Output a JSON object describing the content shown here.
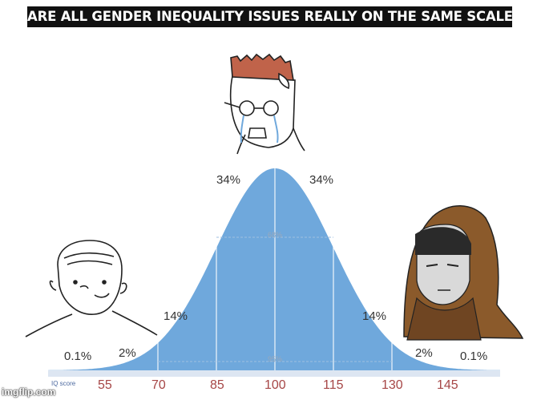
{
  "caption": "ARE ALL GENDER INEQUALITY ISSUES REALLY ON THE SAME SCALE??",
  "axis_label": "IQ score",
  "ticks": [
    "55",
    "70",
    "85",
    "100",
    "115",
    "130",
    "145"
  ],
  "percentages": {
    "center_left": "34%",
    "center_right": "34%",
    "mid_left": "14%",
    "mid_right": "14%",
    "outer_left": "2%",
    "outer_right": "2%",
    "tail_left": "0.1%",
    "tail_right": "0.1%",
    "inner_68": "68%",
    "inner_95": "95%"
  },
  "watermark": "imgflip.com",
  "colors": {
    "curve": "#6fa8dc",
    "ticks": "#a64646",
    "axis_bar": "#dde6f2",
    "hood": "#8b5a2b"
  }
}
